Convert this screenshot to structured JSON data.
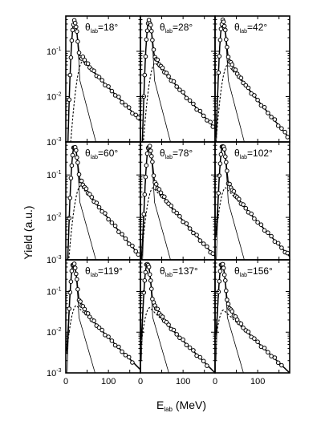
{
  "chart_data": {
    "type": "line",
    "grid_rows": 3,
    "grid_cols": 3,
    "xlabel": {
      "main": "E",
      "sub": "lab",
      "unit": " (MeV)"
    },
    "ylabel": "Yield (a.u.)",
    "x_ticks": [
      "0",
      "100"
    ],
    "y_tick_base": "10",
    "y_tick_exponents": [
      "-1",
      "-2",
      "-3"
    ],
    "xlim": [
      0,
      175
    ],
    "ylim": [
      0.001,
      0.6
    ],
    "y_scale": "log",
    "panel_label_prefix": "θ",
    "panel_label_sub": "lab",
    "panels": [
      {
        "angle": "=18°",
        "peak": {
          "e": 20,
          "y": 0.45
        },
        "broad": {
          "e": 40,
          "y": 0.06
        },
        "tail_end": 0.003
      },
      {
        "angle": "=28°",
        "peak": {
          "e": 20,
          "y": 0.45
        },
        "broad": {
          "e": 35,
          "y": 0.055
        },
        "tail_end": 0.002
      },
      {
        "angle": "=42°",
        "peak": {
          "e": 18,
          "y": 0.45
        },
        "broad": {
          "e": 30,
          "y": 0.05
        },
        "tail_end": 0.0012
      },
      {
        "angle": "=60°",
        "peak": {
          "e": 20,
          "y": 0.45
        },
        "broad": {
          "e": 35,
          "y": 0.055
        },
        "tail_end": 0.0012
      },
      {
        "angle": "=78°",
        "peak": {
          "e": 20,
          "y": 0.45
        },
        "broad": {
          "e": 30,
          "y": 0.05
        },
        "tail_end": 0.0012
      },
      {
        "angle": "=102°",
        "peak": {
          "e": 18,
          "y": 0.45
        },
        "broad": {
          "e": 25,
          "y": 0.05
        },
        "tail_end": 0.0012
      },
      {
        "angle": "=119°",
        "peak": {
          "e": 18,
          "y": 0.45
        },
        "broad": {
          "e": 25,
          "y": 0.045
        },
        "tail_end": 0.0012
      },
      {
        "angle": "=137°",
        "peak": {
          "e": 16,
          "y": 0.45
        },
        "broad": {
          "e": 22,
          "y": 0.04
        },
        "tail_end": 0.001
      },
      {
        "angle": "=156°",
        "peak": {
          "e": 16,
          "y": 0.45
        },
        "broad": {
          "e": 20,
          "y": 0.035
        },
        "tail_end": 0.001
      }
    ],
    "series": [
      {
        "style": "open circles"
      },
      {
        "style": "thick solid line"
      },
      {
        "style": "dotted line"
      },
      {
        "style": "thin solid line"
      }
    ]
  }
}
